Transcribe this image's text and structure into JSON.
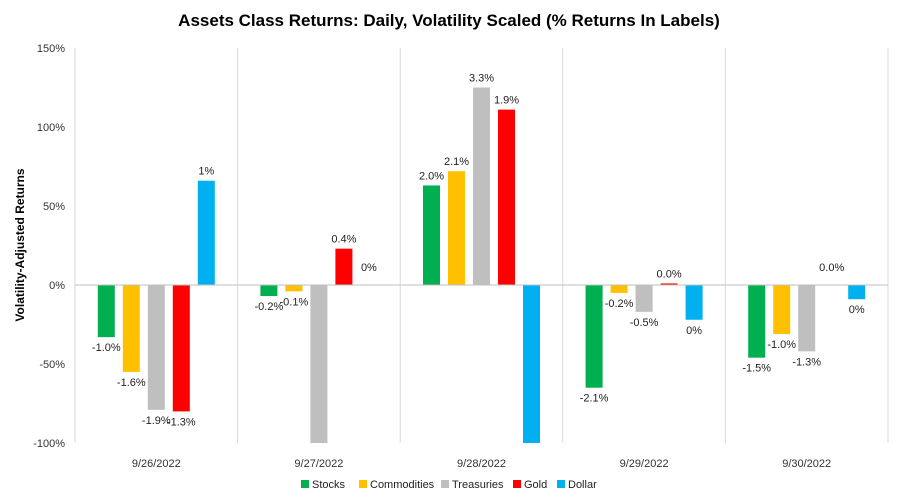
{
  "chart_data": {
    "type": "bar",
    "title": "Assets Class Returns: Daily, Volatility Scaled (% Returns In Labels)",
    "ylabel": "Volatility-Adjusted Returns",
    "xlabel": "",
    "ylim": [
      -100,
      150
    ],
    "y_ticks": [
      150,
      100,
      50,
      0,
      -50,
      -100
    ],
    "y_tick_labels": [
      "150%",
      "100%",
      "50%",
      "0%",
      "-50%",
      "-100%"
    ],
    "grid": "vertical category separators",
    "legend_position": "bottom",
    "categories": [
      "9/26/2022",
      "9/27/2022",
      "9/28/2022",
      "9/29/2022",
      "9/30/2022"
    ],
    "series": [
      {
        "name": "Stocks",
        "color": "#00B050",
        "values": [
          -33,
          -7,
          63,
          -65,
          -46
        ],
        "labels": [
          "-1.0%",
          "-0.2%",
          "2.0%",
          "-2.1%",
          "-1.5%"
        ]
      },
      {
        "name": "Commodities",
        "color": "#FFC000",
        "values": [
          -55,
          -4,
          72,
          -5,
          -31
        ],
        "labels": [
          "-1.6%",
          "-0.1%",
          "2.1%",
          "-0.2%",
          "-1.0%"
        ]
      },
      {
        "name": "Treasuries",
        "color": "#BFBFBF",
        "values": [
          -79,
          -100,
          125,
          -17,
          -42
        ],
        "labels": [
          "-1.9%",
          "",
          "3.3%",
          "-0.5%",
          "-1.3%"
        ]
      },
      {
        "name": "Gold",
        "color": "#FF0000",
        "values": [
          -80,
          23,
          111,
          1,
          0
        ],
        "labels": [
          "-1.3%",
          "0.4%",
          "1.9%",
          "0.0%",
          "0.0%"
        ]
      },
      {
        "name": "Dollar",
        "color": "#00B0F0",
        "values": [
          66,
          0,
          -100,
          -22,
          -9
        ],
        "labels": [
          "1%",
          "0%",
          "",
          "0%",
          "0%"
        ]
      }
    ]
  }
}
